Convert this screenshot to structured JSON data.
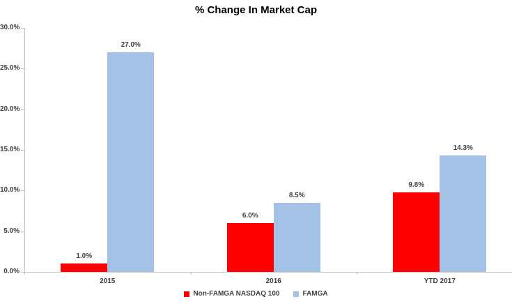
{
  "chart_data": {
    "type": "bar",
    "title": "% Change In Market Cap",
    "categories": [
      "2015",
      "2016",
      "YTD 2017"
    ],
    "series": [
      {
        "name": "Non-FAMGA NASDAQ 100",
        "color": "#fe0000",
        "values": [
          1.0,
          6.0,
          9.8
        ],
        "value_labels": [
          "1.0%",
          "6.0%",
          "9.8%"
        ]
      },
      {
        "name": "FAMGA",
        "color": "#a4c2e5",
        "values": [
          27.0,
          8.5,
          14.3
        ],
        "value_labels": [
          "27.0%",
          "8.5%",
          "14.3%"
        ]
      }
    ],
    "xlabel": "",
    "ylabel": "",
    "ylim": [
      0,
      30
    ],
    "yticks": [
      {
        "value": 0,
        "label": "0.0%"
      },
      {
        "value": 5,
        "label": "5.0%"
      },
      {
        "value": 10,
        "label": "10.0%"
      },
      {
        "value": 15,
        "label": "15.0%"
      },
      {
        "value": 20,
        "label": "20.0%"
      },
      {
        "value": 25,
        "label": "25.0%"
      },
      {
        "value": 30,
        "label": "30.0%"
      }
    ],
    "grid": false,
    "legend_position": "bottom",
    "colors": {
      "axis_line": "#bfbfbf",
      "tick_mark": "#bfbfbf",
      "label_text": "#404040",
      "title_text": "#000000",
      "background": "#ffffff"
    }
  }
}
